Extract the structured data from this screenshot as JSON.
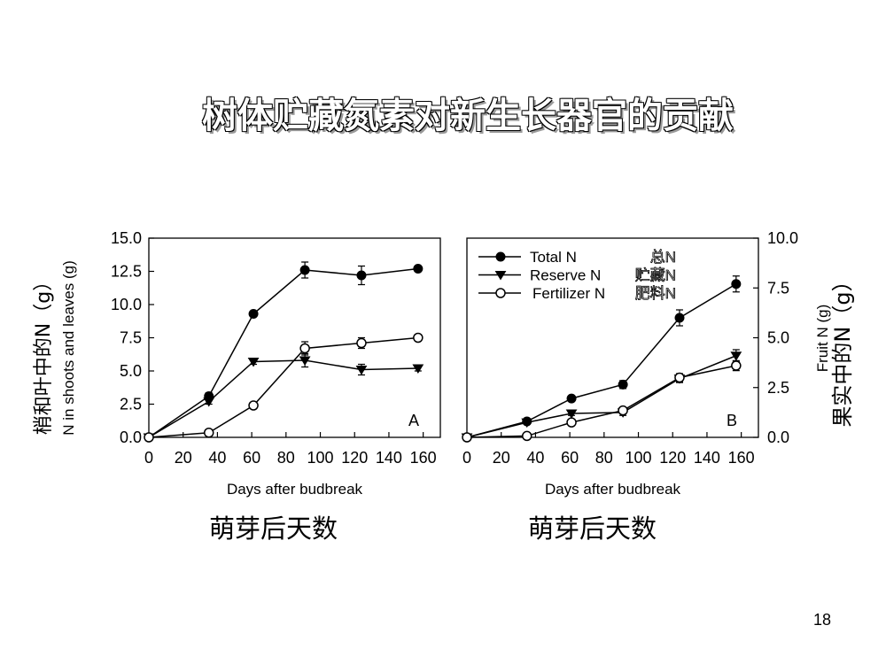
{
  "slide": {
    "title": "树体贮藏氮素对新生长器官的贡献",
    "page_number": "18"
  },
  "chart_data": [
    {
      "type": "line",
      "panel_letter": "A",
      "xlabel": "Days after budbreak",
      "xlabel_cn": "萌芽后天数",
      "ylabel": "N in shoots and leaves (g)",
      "ylabel_cn": "梢和叶中的N（g）",
      "xlim": [
        0,
        170
      ],
      "ylim": [
        0,
        15
      ],
      "x_ticks": [
        0,
        20,
        40,
        60,
        80,
        100,
        120,
        140,
        160
      ],
      "y_ticks": [
        "0.0",
        "2.5",
        "5.0",
        "7.5",
        "10.0",
        "12.5",
        "15.0"
      ],
      "y_axis_side": "left",
      "series": [
        {
          "name": "Total N",
          "marker": "filled-circle",
          "x": [
            0,
            35,
            61,
            91,
            124,
            157
          ],
          "y": [
            0.0,
            3.1,
            9.3,
            12.6,
            12.2,
            12.7
          ],
          "err": [
            0,
            0.25,
            0.2,
            0.6,
            0.7,
            0.2
          ]
        },
        {
          "name": "Reserve N",
          "marker": "filled-triangle-down",
          "x": [
            0,
            35,
            61,
            91,
            124,
            157
          ],
          "y": [
            0.0,
            2.7,
            5.7,
            5.8,
            5.1,
            5.2
          ],
          "err": [
            0,
            0.2,
            0.2,
            0.5,
            0.4,
            0.2
          ]
        },
        {
          "name": "Fertilizer N",
          "marker": "open-circle",
          "x": [
            0,
            35,
            61,
            91,
            124,
            157
          ],
          "y": [
            0.0,
            0.35,
            2.4,
            6.7,
            7.1,
            7.5
          ],
          "err": [
            0,
            0.1,
            0.15,
            0.5,
            0.4,
            0.2
          ]
        }
      ]
    },
    {
      "type": "line",
      "panel_letter": "B",
      "xlabel": "Days after budbreak",
      "xlabel_cn": "萌芽后天数",
      "ylabel": "Fruit N (g)",
      "ylabel_cn": "果实中的N（g）",
      "xlim": [
        0,
        170
      ],
      "ylim": [
        0,
        10
      ],
      "x_ticks": [
        0,
        20,
        40,
        60,
        80,
        100,
        120,
        140,
        160
      ],
      "y_ticks": [
        "0.0",
        "2.5",
        "5.0",
        "7.5",
        "10.0"
      ],
      "y_axis_side": "right",
      "legend_position": "top-left",
      "legend_cn": [
        "总N",
        "贮藏N",
        "肥料N"
      ],
      "series": [
        {
          "name": "Total N",
          "marker": "filled-circle",
          "x": [
            0,
            35,
            61,
            91,
            124,
            157
          ],
          "y": [
            0.0,
            0.8,
            1.95,
            2.65,
            6.0,
            7.7
          ],
          "err": [
            0,
            0.1,
            0.1,
            0.2,
            0.4,
            0.4
          ]
        },
        {
          "name": "Reserve N",
          "marker": "filled-triangle-down",
          "x": [
            0,
            35,
            61,
            91,
            124,
            157
          ],
          "y": [
            0.0,
            0.75,
            1.2,
            1.25,
            2.95,
            4.1
          ],
          "err": [
            0,
            0.08,
            0.1,
            0.15,
            0.2,
            0.3
          ]
        },
        {
          "name": "Fertilizer N",
          "marker": "open-circle",
          "x": [
            0,
            35,
            61,
            91,
            124,
            157
          ],
          "y": [
            0.0,
            0.07,
            0.75,
            1.35,
            3.0,
            3.6
          ],
          "err": [
            0,
            0.03,
            0.08,
            0.15,
            0.2,
            0.25
          ]
        }
      ]
    }
  ]
}
